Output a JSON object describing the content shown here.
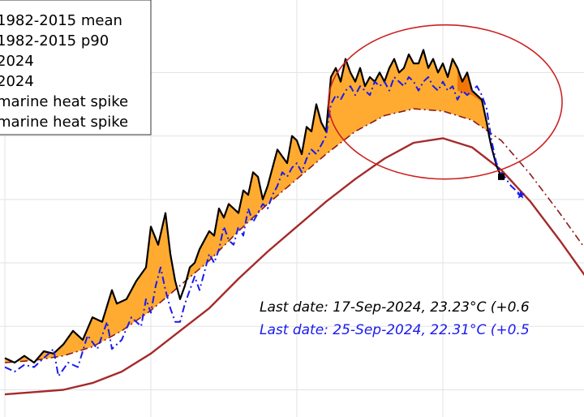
{
  "chart_data": {
    "type": "line",
    "grid": true,
    "legend": {
      "placement": "top-left",
      "entries": [
        "1982-2015 mean",
        "1982-2015 p90",
        "2024",
        "2024",
        "marine heat spike",
        "marine heat spike"
      ]
    },
    "series": [
      {
        "key": "mean",
        "color": "#a52a2a",
        "style": "solid",
        "points": [
          [
            0,
            26.9
          ],
          [
            12,
            26.95
          ],
          [
            24,
            27.0
          ],
          [
            36,
            27.15
          ],
          [
            48,
            27.4
          ],
          [
            60,
            27.8
          ],
          [
            72,
            28.3
          ],
          [
            84,
            28.8
          ],
          [
            96,
            29.45
          ],
          [
            108,
            30.05
          ],
          [
            120,
            30.6
          ],
          [
            132,
            31.15
          ],
          [
            144,
            31.65
          ],
          [
            156,
            32.1
          ],
          [
            168,
            32.45
          ],
          [
            180,
            32.55
          ],
          [
            192,
            32.35
          ],
          [
            204,
            31.85
          ],
          [
            216,
            31.15
          ],
          [
            228,
            30.3
          ],
          [
            240,
            29.4
          ],
          [
            252,
            28.5
          ]
        ]
      },
      {
        "key": "p90",
        "color": "#8b1a1a",
        "style": "dash-dot",
        "points": [
          [
            0,
            27.6
          ],
          [
            12,
            27.65
          ],
          [
            24,
            27.75
          ],
          [
            36,
            27.95
          ],
          [
            48,
            28.3
          ],
          [
            60,
            28.75
          ],
          [
            72,
            29.3
          ],
          [
            84,
            29.85
          ],
          [
            96,
            30.5
          ],
          [
            108,
            31.1
          ],
          [
            120,
            31.65
          ],
          [
            132,
            32.2
          ],
          [
            144,
            32.7
          ],
          [
            156,
            33.05
          ],
          [
            168,
            33.2
          ],
          [
            180,
            33.15
          ],
          [
            192,
            32.95
          ],
          [
            204,
            32.5
          ],
          [
            216,
            31.75
          ],
          [
            228,
            30.9
          ],
          [
            240,
            30.0
          ],
          [
            252,
            29.1
          ]
        ]
      },
      {
        "key": "obs_a",
        "color": "#000000",
        "style": "solid",
        "points": [
          [
            0,
            27.7
          ],
          [
            4,
            27.6
          ],
          [
            8,
            27.75
          ],
          [
            12,
            27.6
          ],
          [
            16,
            27.85
          ],
          [
            20,
            27.8
          ],
          [
            24,
            28.0
          ],
          [
            28,
            28.3
          ],
          [
            32,
            28.1
          ],
          [
            36,
            28.6
          ],
          [
            40,
            28.5
          ],
          [
            44,
            29.2
          ],
          [
            46,
            28.9
          ],
          [
            50,
            29.0
          ],
          [
            54,
            29.4
          ],
          [
            58,
            29.7
          ],
          [
            60,
            30.6
          ],
          [
            63,
            30.2
          ],
          [
            66,
            30.9
          ],
          [
            68,
            30.0
          ],
          [
            70,
            29.4
          ],
          [
            72,
            29.0
          ],
          [
            74,
            29.3
          ],
          [
            76,
            29.7
          ],
          [
            78,
            29.8
          ],
          [
            80,
            30.1
          ],
          [
            84,
            30.5
          ],
          [
            86,
            30.4
          ],
          [
            88,
            31.0
          ],
          [
            90,
            30.8
          ],
          [
            92,
            31.1
          ],
          [
            96,
            30.9
          ],
          [
            98,
            31.4
          ],
          [
            100,
            31.3
          ],
          [
            102,
            31.8
          ],
          [
            104,
            31.7
          ],
          [
            106,
            31.2
          ],
          [
            108,
            31.5
          ],
          [
            110,
            31.9
          ],
          [
            112,
            32.3
          ],
          [
            116,
            32.0
          ],
          [
            118,
            32.6
          ],
          [
            120,
            32.5
          ],
          [
            122,
            32.2
          ],
          [
            124,
            32.8
          ],
          [
            126,
            32.7
          ],
          [
            128,
            33.3
          ],
          [
            130,
            32.9
          ],
          [
            132,
            32.7
          ],
          [
            134,
            33.9
          ],
          [
            136,
            34.1
          ],
          [
            138,
            33.8
          ],
          [
            140,
            34.3
          ],
          [
            142,
            34.0
          ],
          [
            144,
            33.8
          ],
          [
            146,
            34.1
          ],
          [
            148,
            33.7
          ],
          [
            150,
            33.9
          ],
          [
            152,
            33.8
          ],
          [
            154,
            34.0
          ],
          [
            156,
            33.8
          ],
          [
            158,
            34.1
          ],
          [
            160,
            34.3
          ],
          [
            162,
            34.0
          ],
          [
            164,
            34.1
          ],
          [
            166,
            34.4
          ],
          [
            168,
            34.2
          ],
          [
            170,
            34.2
          ],
          [
            172,
            34.5
          ],
          [
            174,
            34.1
          ],
          [
            176,
            34.3
          ],
          [
            178,
            34.0
          ],
          [
            180,
            34.2
          ],
          [
            182,
            33.9
          ],
          [
            184,
            34.3
          ],
          [
            186,
            34.1
          ],
          [
            188,
            33.8
          ],
          [
            190,
            34.0
          ],
          [
            192,
            33.6
          ],
          [
            194,
            33.5
          ],
          [
            196,
            33.4
          ],
          [
            198,
            32.9
          ],
          [
            199,
            32.6
          ],
          [
            200,
            32.35
          ],
          [
            202,
            31.95
          ],
          [
            204,
            31.7
          ]
        ]
      },
      {
        "key": "obs_b",
        "color": "#1a1aee",
        "style": "dash-dot",
        "points": [
          [
            0,
            27.5
          ],
          [
            4,
            27.4
          ],
          [
            8,
            27.55
          ],
          [
            12,
            27.5
          ],
          [
            16,
            27.7
          ],
          [
            20,
            27.9
          ],
          [
            22,
            27.3
          ],
          [
            26,
            27.6
          ],
          [
            30,
            27.5
          ],
          [
            34,
            28.2
          ],
          [
            38,
            27.9
          ],
          [
            42,
            28.5
          ],
          [
            44,
            27.9
          ],
          [
            48,
            28.1
          ],
          [
            52,
            28.6
          ],
          [
            56,
            28.4
          ],
          [
            58,
            29.0
          ],
          [
            60,
            28.7
          ],
          [
            62,
            29.3
          ],
          [
            64,
            29.7
          ],
          [
            66,
            29.2
          ],
          [
            68,
            28.8
          ],
          [
            70,
            28.5
          ],
          [
            72,
            28.5
          ],
          [
            74,
            28.9
          ],
          [
            76,
            29.2
          ],
          [
            78,
            29.5
          ],
          [
            80,
            29.2
          ],
          [
            82,
            29.6
          ],
          [
            84,
            30.0
          ],
          [
            86,
            29.8
          ],
          [
            88,
            30.1
          ],
          [
            90,
            30.6
          ],
          [
            92,
            30.3
          ],
          [
            94,
            30.2
          ],
          [
            96,
            30.6
          ],
          [
            98,
            30.4
          ],
          [
            100,
            31.0
          ],
          [
            102,
            30.7
          ],
          [
            104,
            30.9
          ],
          [
            106,
            31.1
          ],
          [
            108,
            31.0
          ],
          [
            110,
            31.3
          ],
          [
            112,
            31.5
          ],
          [
            114,
            31.8
          ],
          [
            116,
            31.7
          ],
          [
            118,
            31.9
          ],
          [
            120,
            32.0
          ],
          [
            122,
            31.8
          ],
          [
            124,
            32.1
          ],
          [
            126,
            32.3
          ],
          [
            128,
            32.2
          ],
          [
            130,
            32.4
          ],
          [
            132,
            32.6
          ],
          [
            134,
            33.3
          ],
          [
            136,
            33.5
          ],
          [
            138,
            33.4
          ],
          [
            140,
            33.6
          ],
          [
            142,
            33.7
          ],
          [
            144,
            33.5
          ],
          [
            146,
            33.7
          ],
          [
            148,
            33.6
          ],
          [
            150,
            33.5
          ],
          [
            152,
            33.8
          ],
          [
            154,
            33.7
          ],
          [
            156,
            33.8
          ],
          [
            158,
            33.6
          ],
          [
            160,
            33.9
          ],
          [
            162,
            33.8
          ],
          [
            164,
            33.7
          ],
          [
            166,
            33.9
          ],
          [
            168,
            33.8
          ],
          [
            170,
            33.6
          ],
          [
            172,
            33.8
          ],
          [
            174,
            33.9
          ],
          [
            176,
            33.7
          ],
          [
            178,
            33.6
          ],
          [
            180,
            33.8
          ],
          [
            182,
            33.6
          ],
          [
            184,
            33.7
          ],
          [
            186,
            33.4
          ],
          [
            188,
            33.6
          ],
          [
            190,
            33.5
          ],
          [
            192,
            33.6
          ],
          [
            194,
            33.7
          ],
          [
            196,
            33.5
          ],
          [
            198,
            33.2
          ],
          [
            200,
            32.5
          ],
          [
            202,
            32.0
          ],
          [
            204,
            31.8
          ],
          [
            208,
            31.5
          ],
          [
            212,
            31.3
          ]
        ]
      }
    ],
    "end_markers": [
      {
        "series": "obs_a",
        "x": 204,
        "y": 31.7,
        "shape": "square",
        "color": "#000000"
      },
      {
        "series": "obs_b",
        "x": 212,
        "y": 31.3,
        "shape": "star",
        "color": "#1a1aee"
      }
    ],
    "highlight_ellipse": {
      "color": "#cc2222",
      "cx": 181,
      "cy": 33.35,
      "rx": 48,
      "ry": 1.7
    },
    "fill_colors": {
      "spike": "#ffa726",
      "spike_dark": "#ef6c00"
    },
    "annotations": [
      {
        "text": "Last date: 17-Sep-2024, 23.23°C (+0.6",
        "color": "#000000"
      },
      {
        "text": "Last date: 25-Sep-2024, 22.31°C (+0.5",
        "color": "#1a1aee"
      }
    ],
    "grid_x": [
      0,
      60,
      120,
      180,
      240
    ],
    "grid_y": [
      27.0,
      28.4,
      29.8,
      31.2,
      32.6,
      34.0
    ],
    "xlim": [
      -2,
      238
    ],
    "ylim": [
      26.4,
      35.6
    ]
  }
}
